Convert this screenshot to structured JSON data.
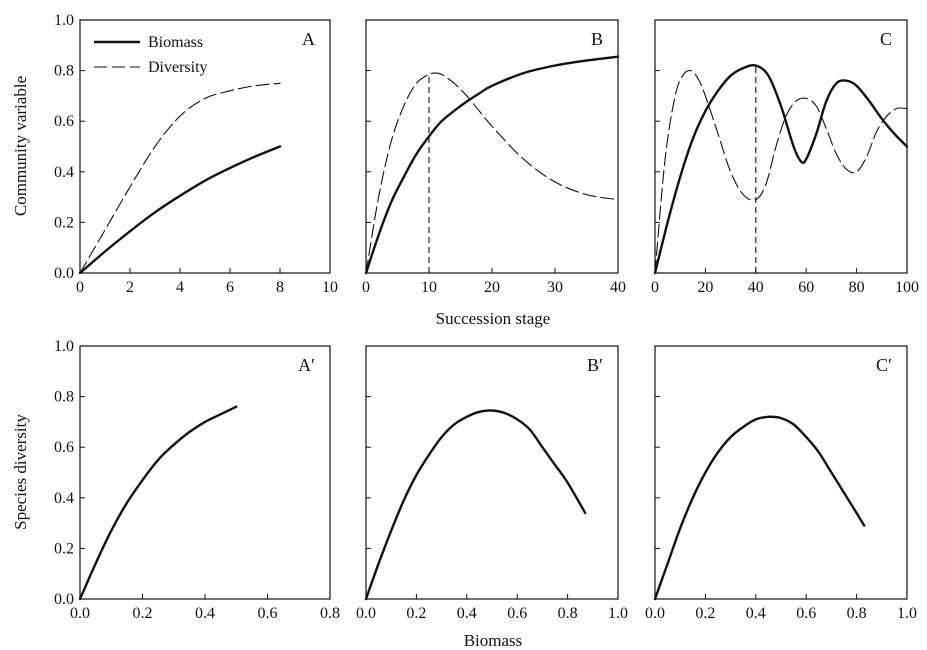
{
  "chart_data": [
    {
      "id": "A",
      "type": "line",
      "label": "A",
      "ylabel": "Community variable",
      "xlim": [
        0,
        10
      ],
      "ylim": [
        0,
        1
      ],
      "xticks": [
        "0",
        "2",
        "4",
        "6",
        "8",
        "10"
      ],
      "yticks": [
        "0.0",
        "0.2",
        "0.4",
        "0.6",
        "0.8",
        "1.0"
      ],
      "legend": {
        "placement": "top-left",
        "entries": [
          "Biomass",
          "Diversity"
        ]
      },
      "series": [
        {
          "name": "Biomass",
          "style": "solid",
          "x": [
            0,
            1,
            2,
            3,
            4,
            5,
            6,
            7,
            8
          ],
          "y": [
            0,
            0.085,
            0.165,
            0.24,
            0.305,
            0.365,
            0.415,
            0.46,
            0.5
          ]
        },
        {
          "name": "Diversity",
          "style": "dashed",
          "x": [
            0,
            1,
            2,
            3,
            4,
            5,
            6,
            7,
            8
          ],
          "y": [
            0,
            0.17,
            0.34,
            0.5,
            0.62,
            0.69,
            0.72,
            0.74,
            0.75
          ]
        }
      ]
    },
    {
      "id": "B",
      "type": "line",
      "label": "B",
      "xlim": [
        0,
        40
      ],
      "ylim": [
        0,
        1
      ],
      "xticks": [
        "0",
        "10",
        "20",
        "30",
        "40"
      ],
      "series": [
        {
          "name": "Biomass",
          "style": "solid",
          "x": [
            0,
            2,
            4,
            6,
            8,
            10,
            12,
            15,
            18,
            20,
            25,
            30,
            35,
            40
          ],
          "y": [
            0,
            0.15,
            0.28,
            0.38,
            0.47,
            0.54,
            0.6,
            0.66,
            0.71,
            0.74,
            0.79,
            0.82,
            0.84,
            0.855
          ]
        },
        {
          "name": "Diversity",
          "style": "dashed",
          "x": [
            0,
            2,
            4,
            6,
            8,
            10,
            11,
            12,
            14,
            16,
            18,
            20,
            25,
            30,
            35,
            40
          ],
          "y": [
            0,
            0.3,
            0.52,
            0.66,
            0.75,
            0.785,
            0.79,
            0.785,
            0.75,
            0.7,
            0.64,
            0.58,
            0.45,
            0.36,
            0.31,
            0.29
          ]
        }
      ],
      "guides": [
        {
          "x": 10,
          "y": 0.79
        }
      ]
    },
    {
      "id": "C",
      "type": "line",
      "label": "C",
      "xlim": [
        0,
        100
      ],
      "ylim": [
        0,
        1
      ],
      "xticks": [
        "0",
        "20",
        "40",
        "60",
        "80",
        "100"
      ],
      "series": [
        {
          "name": "Biomass",
          "style": "solid",
          "x": [
            0,
            5,
            10,
            15,
            20,
            25,
            30,
            35,
            40,
            45,
            50,
            55,
            58,
            60,
            64,
            68,
            72,
            76,
            80,
            85,
            90,
            95,
            100
          ],
          "y": [
            0,
            0.2,
            0.38,
            0.53,
            0.64,
            0.72,
            0.78,
            0.81,
            0.82,
            0.78,
            0.66,
            0.5,
            0.44,
            0.45,
            0.55,
            0.68,
            0.75,
            0.76,
            0.74,
            0.68,
            0.61,
            0.55,
            0.5
          ]
        },
        {
          "name": "Diversity",
          "style": "dashed",
          "x": [
            0,
            4,
            8,
            11,
            14,
            17,
            20,
            25,
            30,
            35,
            40,
            44,
            48,
            52,
            56,
            60,
            64,
            68,
            72,
            76,
            80,
            84,
            88,
            92,
            96,
            100
          ],
          "y": [
            0,
            0.45,
            0.7,
            0.78,
            0.8,
            0.77,
            0.7,
            0.55,
            0.4,
            0.31,
            0.29,
            0.35,
            0.5,
            0.62,
            0.68,
            0.69,
            0.66,
            0.57,
            0.47,
            0.41,
            0.4,
            0.46,
            0.56,
            0.62,
            0.65,
            0.65
          ]
        }
      ],
      "guides": [
        {
          "x": 40,
          "y": 0.82
        }
      ]
    },
    {
      "id": "A2",
      "type": "line",
      "label": "A′",
      "ylabel": "Species diversity",
      "xlim": [
        0,
        0.8
      ],
      "ylim": [
        0,
        1
      ],
      "xticks": [
        "0.0",
        "0.2",
        "0.4",
        "0.6",
        "0.8"
      ],
      "yticks": [
        "0.0",
        "0.2",
        "0.4",
        "0.6",
        "0.8",
        "1.0"
      ],
      "series": [
        {
          "name": "",
          "style": "solid",
          "x": [
            0,
            0.05,
            0.1,
            0.15,
            0.2,
            0.25,
            0.3,
            0.35,
            0.4,
            0.45,
            0.5
          ],
          "y": [
            0,
            0.14,
            0.27,
            0.38,
            0.47,
            0.55,
            0.61,
            0.66,
            0.7,
            0.73,
            0.76
          ]
        }
      ]
    },
    {
      "id": "B2",
      "type": "line",
      "label": "B′",
      "xlim": [
        0,
        1
      ],
      "ylim": [
        0,
        1
      ],
      "xticks": [
        "0.0",
        "0.2",
        "0.4",
        "0.6",
        "0.8",
        "1.0"
      ],
      "series": [
        {
          "name": "",
          "style": "solid",
          "x": [
            0,
            0.05,
            0.1,
            0.15,
            0.2,
            0.25,
            0.3,
            0.35,
            0.4,
            0.45,
            0.5,
            0.55,
            0.6,
            0.65,
            0.7,
            0.75,
            0.8,
            0.87
          ],
          "y": [
            0,
            0.14,
            0.27,
            0.39,
            0.49,
            0.57,
            0.64,
            0.69,
            0.72,
            0.74,
            0.745,
            0.735,
            0.71,
            0.67,
            0.6,
            0.53,
            0.46,
            0.34
          ]
        }
      ]
    },
    {
      "id": "C2",
      "type": "line",
      "label": "C′",
      "xlim": [
        0,
        1
      ],
      "ylim": [
        0,
        1
      ],
      "xticks": [
        "0.0",
        "0.2",
        "0.4",
        "0.6",
        "0.8",
        "1.0"
      ],
      "series": [
        {
          "name": "",
          "style": "solid",
          "x": [
            0,
            0.05,
            0.1,
            0.15,
            0.2,
            0.25,
            0.3,
            0.35,
            0.4,
            0.45,
            0.5,
            0.55,
            0.6,
            0.65,
            0.7,
            0.75,
            0.8,
            0.83
          ],
          "y": [
            0,
            0.14,
            0.28,
            0.4,
            0.5,
            0.58,
            0.64,
            0.68,
            0.71,
            0.72,
            0.715,
            0.69,
            0.64,
            0.58,
            0.5,
            0.42,
            0.34,
            0.29
          ]
        }
      ]
    }
  ],
  "shared": {
    "top_xlabel": "Succession stage",
    "bottom_xlabel": "Biomass"
  },
  "colors": {
    "line": "#111111",
    "axis": "#111111"
  }
}
